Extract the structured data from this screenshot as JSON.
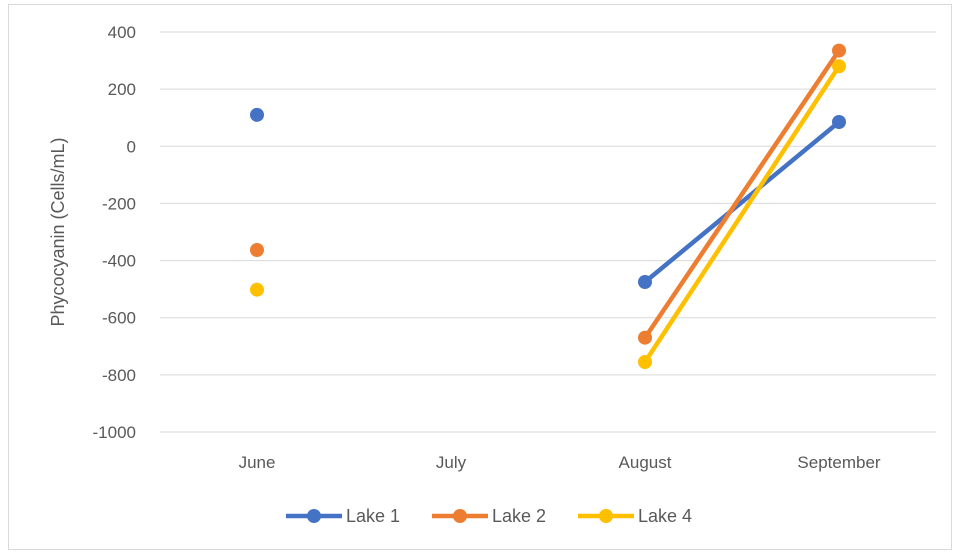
{
  "chart_data": {
    "type": "line",
    "title": "",
    "xlabel": "",
    "ylabel": "Phycocyanin (Cells/mL)",
    "categories": [
      "June",
      "July",
      "August",
      "September"
    ],
    "ylim": [
      -1000,
      400
    ],
    "yticks": [
      400,
      200,
      0,
      -200,
      -400,
      -600,
      -800,
      -1000
    ],
    "grid": true,
    "legend": "bottom",
    "series": [
      {
        "name": "Lake 1",
        "color": "#4472C4",
        "values": [
          110,
          null,
          -475,
          85
        ]
      },
      {
        "name": "Lake 2",
        "color": "#ED7D31",
        "values": [
          -363,
          null,
          -670,
          335
        ]
      },
      {
        "name": "Lake 4",
        "color": "#FFC000",
        "values": [
          -502,
          null,
          -755,
          280
        ]
      }
    ]
  }
}
